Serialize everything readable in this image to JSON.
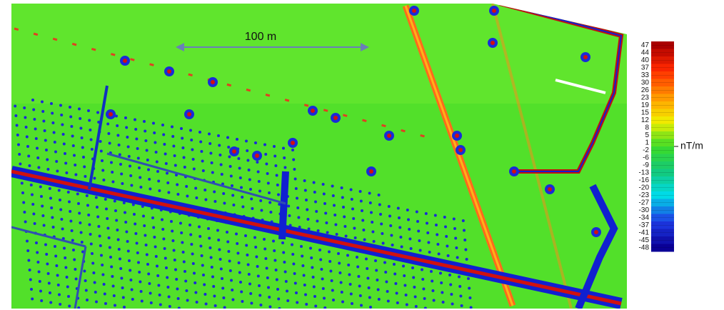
{
  "scale_bar": {
    "label": "100 m"
  },
  "legend": {
    "ticks": [
      47,
      44,
      40,
      37,
      33,
      30,
      26,
      23,
      19,
      15,
      12,
      8,
      5,
      1,
      -2,
      -6,
      -9,
      -13,
      -16,
      -20,
      -23,
      -27,
      -30,
      -34,
      -37,
      -41,
      -45,
      -48
    ],
    "unit": "nT/m"
  }
}
